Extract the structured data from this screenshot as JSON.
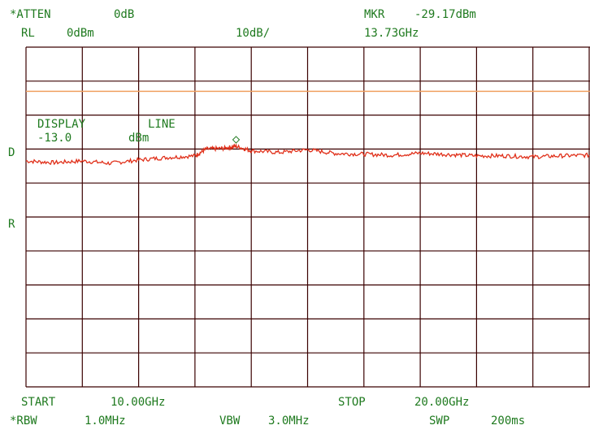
{
  "header": {
    "atten_label": "*ATTEN",
    "atten_value": "0dB",
    "ref_label": "RL",
    "ref_value": "0dBm",
    "scale": "10dB/",
    "marker_label": "MKR",
    "marker_amp": "-29.17dBm",
    "marker_freq": "13.73GHz"
  },
  "overlay": {
    "display_label": "DISPLAY",
    "line_label": "LINE",
    "line_value": "-13.0",
    "line_unit": "dBm"
  },
  "side_labels": {
    "d": "D",
    "r": "R"
  },
  "footer": {
    "start_label": "START",
    "start_value": "10.00GHz",
    "stop_label": "STOP",
    "stop_value": "20.00GHz",
    "rbw_label": "*RBW",
    "rbw_value": "1.0MHz",
    "vbw_label": "VBW",
    "vbw_value": "3.0MHz",
    "swp_label": "SWP",
    "swp_value": "200ms"
  },
  "colors": {
    "grid": "#3a0000",
    "text": "#1f7a1f",
    "display_line": "#f0a060",
    "trace": "#e0301a"
  },
  "chart_data": {
    "type": "line",
    "x_range_ghz": [
      10.0,
      20.0
    ],
    "y_range_dbm": [
      0,
      -100
    ],
    "display_line_dbm": -13.0,
    "marker": {
      "x_ghz": 13.73,
      "y_dbm": -29.17
    },
    "trace": {
      "x_ghz": [
        10.0,
        10.5,
        11.0,
        11.5,
        12.0,
        12.5,
        13.0,
        13.2,
        13.5,
        13.73,
        14.0,
        14.5,
        15.0,
        15.5,
        16.0,
        16.5,
        17.0,
        17.5,
        18.0,
        18.5,
        19.0,
        19.5,
        20.0
      ],
      "y_dbm": [
        -33.5,
        -34.0,
        -33.5,
        -34.2,
        -33.2,
        -32.5,
        -32.0,
        -30.0,
        -29.8,
        -29.2,
        -30.5,
        -31.0,
        -30.2,
        -31.3,
        -31.5,
        -31.8,
        -31.2,
        -31.6,
        -32.0,
        -32.0,
        -32.3,
        -32.0,
        -31.8
      ]
    }
  }
}
